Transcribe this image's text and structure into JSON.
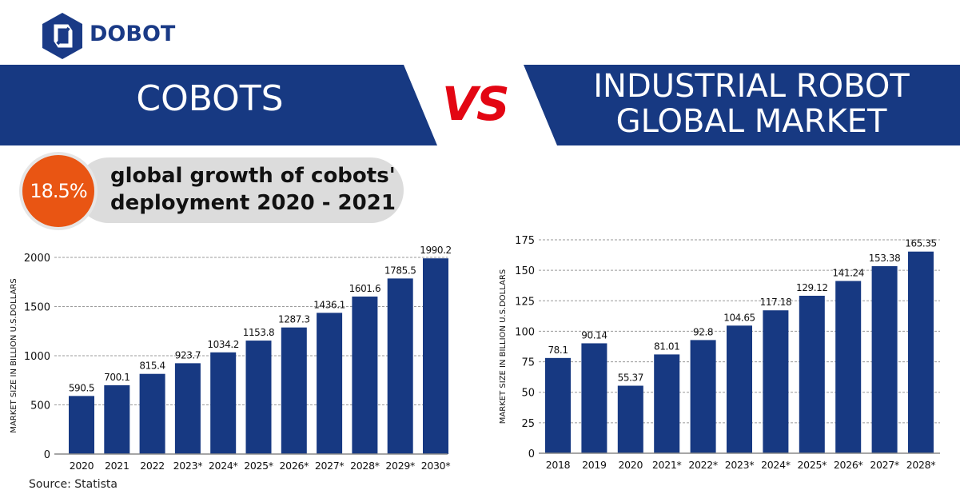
{
  "brand": {
    "name": "DOBOT",
    "color": "#1a3a86"
  },
  "header": {
    "left_title": "COBOTS",
    "vs": "VS",
    "right_title_line1": "INDUSTRIAL ROBOT",
    "right_title_line2": "GLOBAL MARKET",
    "banner_color": "#173982",
    "vs_color": "#e30613"
  },
  "callout": {
    "stat": "18.5%",
    "line1": "global growth of cobots'",
    "line2": "deployment 2020 - 2021",
    "stat_color": "#e95513"
  },
  "source": "Source: Statista",
  "chart_data": [
    {
      "type": "bar",
      "ylabel": "MARKET SIZE IN BILLION U.S.DOLLARS",
      "categories": [
        "2020",
        "2021",
        "2022",
        "2023*",
        "2024*",
        "2025*",
        "2026*",
        "2027*",
        "2028*",
        "2029*",
        "2030*"
      ],
      "values": [
        590.5,
        700.1,
        815.4,
        923.7,
        1034.2,
        1153.8,
        1287.3,
        1436.1,
        1601.6,
        1785.5,
        1990.2
      ],
      "labels": [
        "590.5",
        "700.1",
        "815.4",
        "923.7",
        "1034.2",
        "1153.8",
        "1287.3",
        "1436.1",
        "1601.6",
        "1785.5",
        "1990.2"
      ],
      "yticks": [
        0,
        500,
        1000,
        1500,
        2000
      ],
      "ylim": [
        0,
        2000
      ],
      "grid": true,
      "bar_color": "#173982"
    },
    {
      "type": "bar",
      "ylabel": "MARKET SIZE IN BILLION U.S.DOLLARS",
      "categories": [
        "2018",
        "2019",
        "2020",
        "2021*",
        "2022*",
        "2023*",
        "2024*",
        "2025*",
        "2026*",
        "2027*",
        "2028*"
      ],
      "values": [
        78.1,
        90.14,
        55.37,
        81.01,
        92.8,
        104.65,
        117.18,
        129.12,
        141.24,
        153.38,
        165.35
      ],
      "labels": [
        "78.1",
        "90.14",
        "55.37",
        "81.01",
        "92.8",
        "104.65",
        "117.18",
        "129.12",
        "141.24",
        "153.38",
        "165.35"
      ],
      "yticks": [
        0,
        25,
        50,
        75,
        100,
        125,
        150,
        175
      ],
      "ylim": [
        0,
        175
      ],
      "grid": true,
      "bar_color": "#173982"
    }
  ]
}
